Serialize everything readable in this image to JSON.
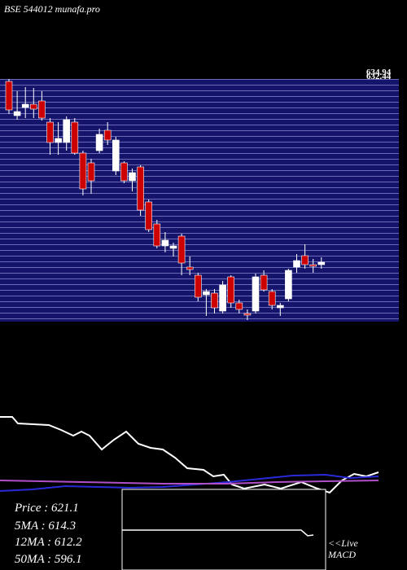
{
  "chart_data": {
    "type": "candlestick",
    "title": "BSE 544012 munafa.pro",
    "price_labels": [
      634.94,
      632.44
    ],
    "ylim": [
      617.45,
      632.35
    ],
    "up_color": "#ffffff",
    "down_color": "#cc0000",
    "open": [
      632.2,
      630.1,
      630.6,
      630.8,
      631.0,
      629.7,
      628.45,
      628.45,
      629.7,
      627.8,
      627.2,
      627.95,
      629.2,
      626.7,
      627.2,
      626.1,
      626.95,
      624.8,
      623.45,
      622.1,
      621.95,
      622.7,
      620.8,
      620.3,
      619.1,
      619.2,
      618.1,
      620.2,
      618.6,
      617.95,
      618.1,
      620.3,
      619.3,
      618.3,
      618.85,
      620.8,
      621.5,
      620.95,
      620.95
    ],
    "high": [
      632.35,
      631.6,
      631.85,
      631.8,
      631.6,
      629.95,
      629.7,
      630.05,
      629.95,
      627.95,
      627.45,
      629.3,
      629.7,
      628.8,
      627.3,
      626.85,
      627.05,
      624.95,
      623.7,
      622.95,
      622.3,
      622.85,
      621.45,
      620.45,
      619.45,
      619.45,
      619.95,
      620.3,
      618.8,
      618.2,
      620.4,
      620.6,
      619.45,
      618.6,
      620.7,
      621.6,
      622.2,
      621.3,
      621.4
    ],
    "low": [
      630.2,
      629.85,
      629.95,
      629.95,
      629.8,
      627.7,
      627.7,
      627.95,
      627.7,
      625.2,
      625.3,
      627.8,
      628.3,
      626.45,
      625.95,
      625.45,
      623.95,
      622.95,
      621.95,
      621.7,
      621.45,
      620.3,
      620.3,
      618.7,
      617.8,
      617.95,
      617.95,
      618.3,
      617.95,
      617.55,
      617.95,
      619.3,
      618.2,
      617.8,
      618.7,
      620.45,
      620.7,
      620.45,
      620.7
    ],
    "close": [
      630.45,
      630.35,
      630.8,
      630.5,
      629.95,
      628.45,
      628.7,
      629.85,
      627.8,
      625.6,
      626.1,
      628.95,
      628.6,
      628.6,
      626.1,
      626.6,
      624.3,
      623.1,
      622.1,
      622.45,
      622.1,
      621.05,
      620.65,
      618.95,
      619.3,
      618.3,
      619.7,
      618.6,
      618.2,
      617.85,
      620.2,
      619.4,
      618.45,
      618.45,
      620.6,
      621.2,
      620.95,
      620.85,
      621.1
    ],
    "stats": [
      "Price  : 621.1",
      "5MA : 614.3",
      "12MA : 612.2",
      "50MA : 596.1"
    ],
    "macd_label": [
      "<<Live",
      "MACD"
    ]
  }
}
